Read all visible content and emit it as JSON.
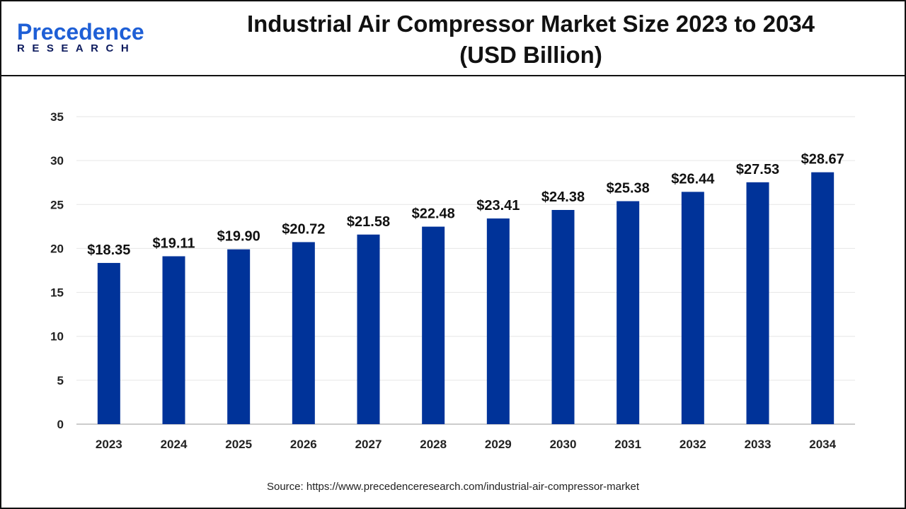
{
  "logo": {
    "line1": "Precedence",
    "line2": "RESEARCH"
  },
  "title_line1": "Industrial Air Compressor Market Size 2023 to 2034",
  "title_line2": "(USD Billion)",
  "source": "Source: https://www.precedenceresearch.com/industrial-air-compressor-market",
  "colors": {
    "bar": "#003399",
    "grid": "#e6e6e6"
  },
  "chart_data": {
    "type": "bar",
    "title": "Industrial Air Compressor Market Size 2023 to 2034 (USD Billion)",
    "categories": [
      "2023",
      "2024",
      "2025",
      "2026",
      "2027",
      "2028",
      "2029",
      "2030",
      "2031",
      "2032",
      "2033",
      "2034"
    ],
    "values": [
      18.35,
      19.11,
      19.9,
      20.72,
      21.58,
      22.48,
      23.41,
      24.38,
      25.38,
      26.44,
      27.53,
      28.67
    ],
    "data_labels": [
      "$18.35",
      "$19.11",
      "$19.90",
      "$20.72",
      "$21.58",
      "$22.48",
      "$23.41",
      "$24.38",
      "$25.38",
      "$26.44",
      "$27.53",
      "$28.67"
    ],
    "yticks": [
      0,
      5,
      10,
      15,
      20,
      25,
      30,
      35
    ],
    "ylim": [
      0,
      35
    ],
    "xlabel": "",
    "ylabel": "",
    "grid": true,
    "legend": "none"
  }
}
